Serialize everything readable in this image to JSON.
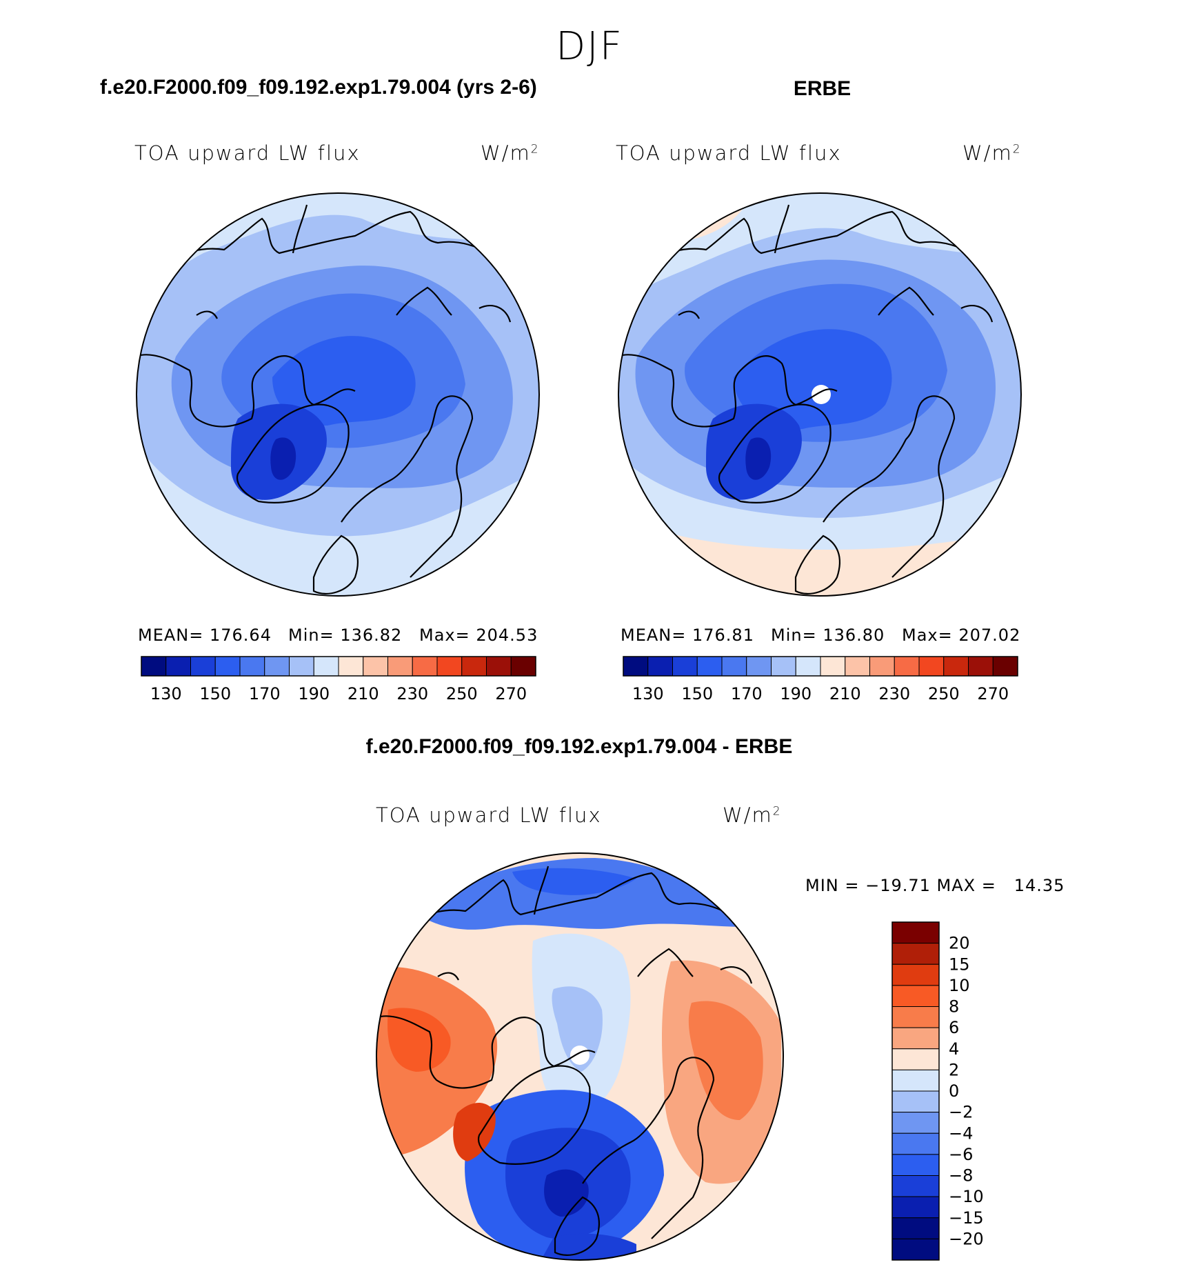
{
  "page_title": "DJF",
  "panels": {
    "model": {
      "case_title": "f.e20.F2000.f09_f09.192.exp1.79.004 (yrs 2-6)",
      "variable": "TOA upward LW flux",
      "units": "W/m",
      "units_exp": "2",
      "mean_text": "MEAN= 176.64",
      "min_text": "Min= 136.82",
      "max_text": "Max= 204.53"
    },
    "obs": {
      "case_title": "ERBE",
      "variable": "TOA upward LW flux",
      "units": "W/m",
      "units_exp": "2",
      "mean_text": "MEAN= 176.81",
      "min_text": "Min= 136.80",
      "max_text": "Max= 207.02"
    },
    "diff": {
      "case_title": "f.e20.F2000.f09_f09.192.exp1.79.004 - ERBE",
      "variable": "TOA upward LW flux",
      "units": "W/m",
      "units_exp": "2",
      "minmax_text": "MIN = −19.71 MAX =   14.35"
    }
  },
  "chart_data": [
    {
      "type": "heatmap",
      "title": "f.e20.F2000.f09_f09.192.exp1.79.004 (yrs 2-6)",
      "projection": "north-polar-stereographic",
      "season": "DJF",
      "variable": "TOA upward LW flux",
      "units": "W/m2",
      "stats": {
        "mean": 176.64,
        "min": 136.82,
        "max": 204.53
      },
      "contour_levels": [
        130,
        140,
        150,
        160,
        170,
        180,
        190,
        200,
        210,
        220,
        230,
        240,
        250,
        260,
        270
      ],
      "colorbar_labels": [
        "130",
        "150",
        "170",
        "190",
        "210",
        "230",
        "250",
        "270"
      ]
    },
    {
      "type": "heatmap",
      "title": "ERBE",
      "projection": "north-polar-stereographic",
      "season": "DJF",
      "variable": "TOA upward LW flux",
      "units": "W/m2",
      "stats": {
        "mean": 176.81,
        "min": 136.8,
        "max": 207.02
      },
      "contour_levels": [
        130,
        140,
        150,
        160,
        170,
        180,
        190,
        200,
        210,
        220,
        230,
        240,
        250,
        260,
        270
      ],
      "colorbar_labels": [
        "130",
        "150",
        "170",
        "190",
        "210",
        "230",
        "250",
        "270"
      ]
    },
    {
      "type": "heatmap",
      "title": "f.e20.F2000.f09_f09.192.exp1.79.004 - ERBE",
      "projection": "north-polar-stereographic",
      "season": "DJF",
      "variable": "TOA upward LW flux",
      "units": "W/m2",
      "stats": {
        "min": -19.71,
        "max": 14.35
      },
      "contour_levels": [
        -20,
        -15,
        -10,
        -8,
        -6,
        -4,
        -2,
        0,
        2,
        4,
        6,
        8,
        10,
        15,
        20
      ],
      "colorbar_labels": [
        "20",
        "15",
        "10",
        "8",
        "6",
        "4",
        "2",
        "0",
        "−2",
        "−4",
        "−6",
        "−8",
        "−10",
        "−15",
        "−20"
      ]
    }
  ],
  "colors": {
    "abs_scale": [
      "#000c80",
      "#0a1fb0",
      "#1a3fd8",
      "#2c5ef0",
      "#4a78f0",
      "#6f96f2",
      "#a6c1f7",
      "#d5e6fb",
      "#fde6d6",
      "#fcc3a8",
      "#f99b78",
      "#f76b45",
      "#f24720",
      "#c9280d",
      "#9b1008",
      "#6a0000"
    ],
    "diff_scale": [
      "#7a0000",
      "#b01f08",
      "#e03c10",
      "#f85a25",
      "#f87c4a",
      "#f9a680",
      "#fde6d6",
      "#d5e6fb",
      "#a6c1f7",
      "#6f96f2",
      "#4a78f0",
      "#2c5ef0",
      "#1a3fd8",
      "#0a1fb0",
      "#000c80"
    ]
  }
}
